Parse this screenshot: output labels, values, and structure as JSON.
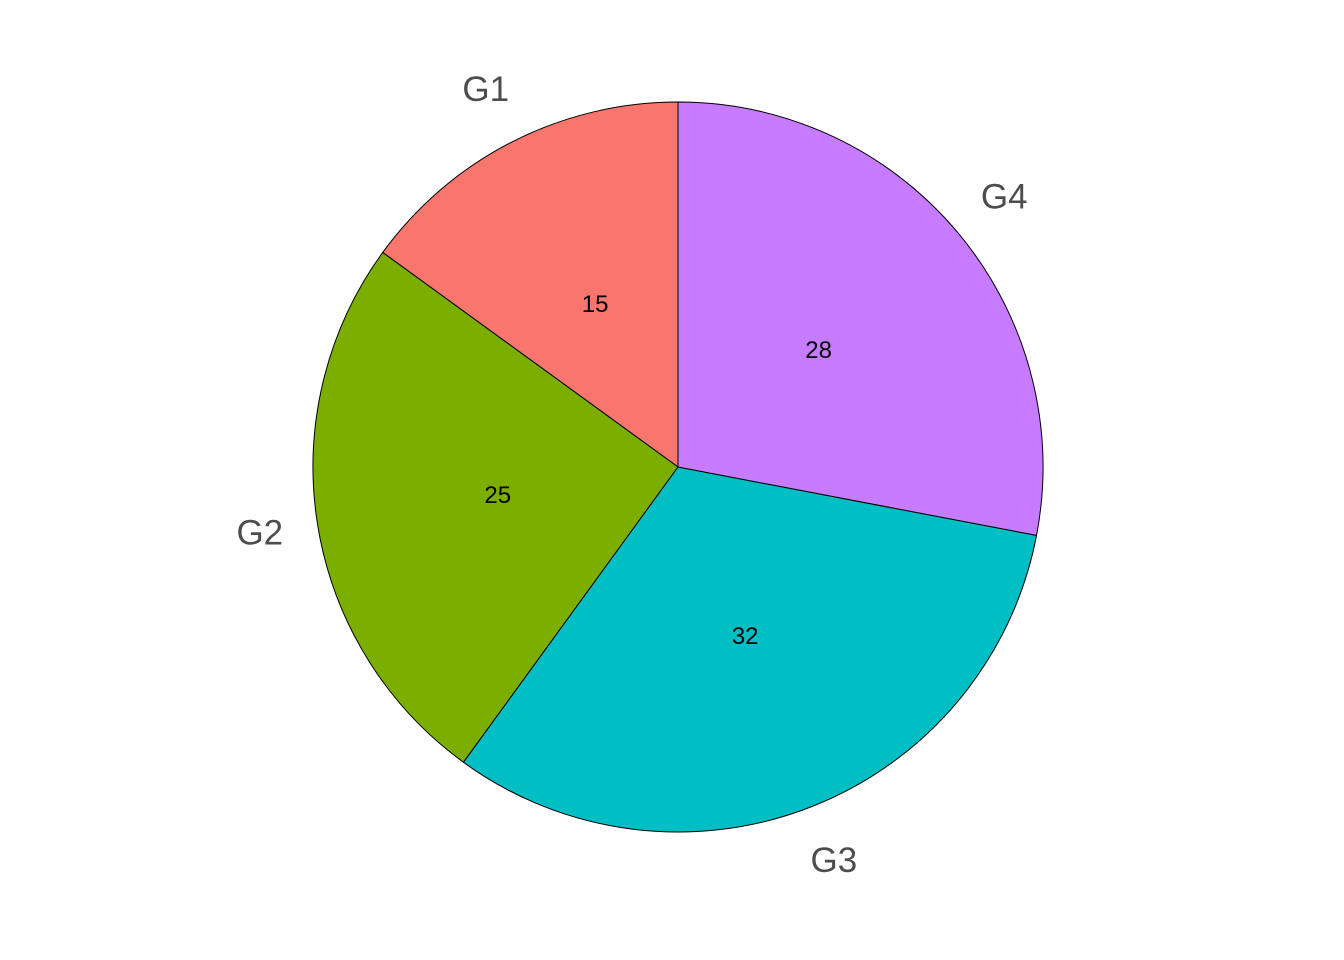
{
  "chart_data": {
    "type": "pie",
    "title": "",
    "start": "12 o'clock",
    "direction": "clockwise",
    "categories": [
      "G1",
      "G2",
      "G3",
      "G4"
    ],
    "values": [
      15,
      25,
      32,
      28
    ],
    "slices": [
      {
        "label": "G1",
        "value": 15,
        "value_label": "15",
        "color": "#F8766D"
      },
      {
        "label": "G2",
        "value": 25,
        "value_label": "25",
        "color": "#7CAE00"
      },
      {
        "label": "G3",
        "value": 32,
        "value_label": "32",
        "color": "#00BFC4"
      },
      {
        "label": "G4",
        "value": 28,
        "value_label": "28",
        "color": "#C77CFF"
      }
    ],
    "order_drawn_from_top": "counter-clockwise: G1, G2, G3, G4",
    "legend": "none",
    "grid": false
  }
}
